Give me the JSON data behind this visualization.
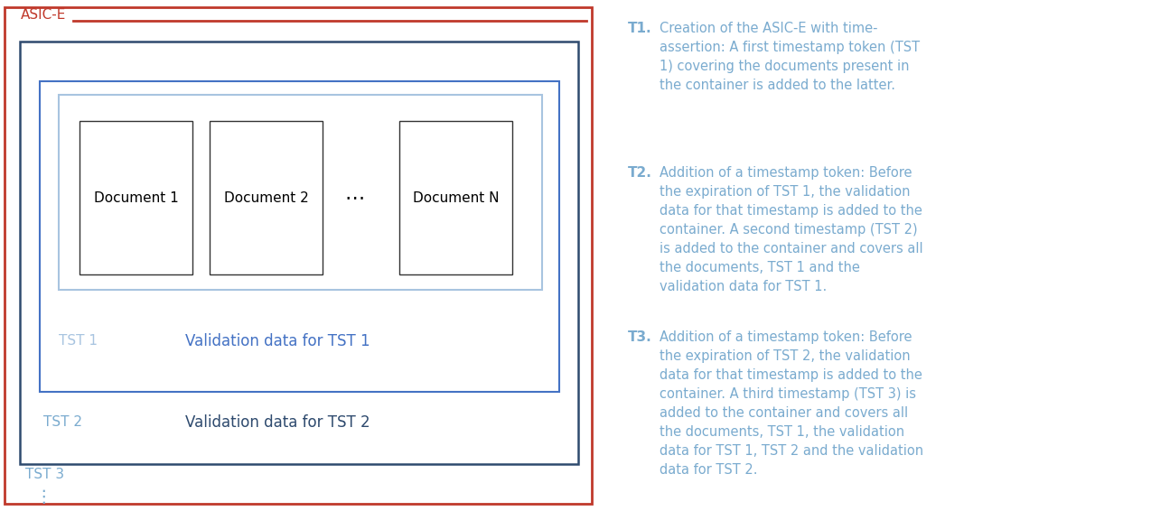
{
  "fig_w": 12.74,
  "fig_h": 5.66,
  "dpi": 100,
  "asic_label": "ASIC-E",
  "asic_color": "#c0392b",
  "dark_blue": "#2e4a6e",
  "mid_blue": "#4472c4",
  "light_blue": "#7ba7d4",
  "lighter_blue": "#a8c4e0",
  "tst1_label": "TST 1",
  "tst1_val_label": "Validation data for TST 1",
  "tst2_label": "TST 2",
  "tst2_val_label": "Validation data for TST 2",
  "tst3_label": "TST 3",
  "ellipsis_v": "⋮",
  "ellipsis_h": "⋯",
  "doc1": "Document 1",
  "doc2": "Document 2",
  "docN": "Document N",
  "text_color": "#7aabcf",
  "t1_label": "T1.",
  "t1_text": "Creation of the ASIC-E with time-\nassertion: A first timestamp token (TST\n1) covering the documents present in\nthe container is added to the latter.",
  "t2_label": "T2.",
  "t2_text": "Addition of a timestamp token: Before\nthe expiration of TST 1, the validation\ndata for that timestamp is added to the\ncontainer. A second timestamp (TST 2)\nis added to the container and covers all\nthe documents, TST 1 and the\nvalidation data for TST 1.",
  "t3_label": "T3.",
  "t3_text": "Addition of a timestamp token: Before\nthe expiration of TST 2, the validation\ndata for that timestamp is added to the\ncontainer. A third timestamp (TST 3) is\nadded to the container and covers all\nthe documents, TST 1, the validation\ndata for TST 1, TST 2 and the validation\ndata for TST 2."
}
